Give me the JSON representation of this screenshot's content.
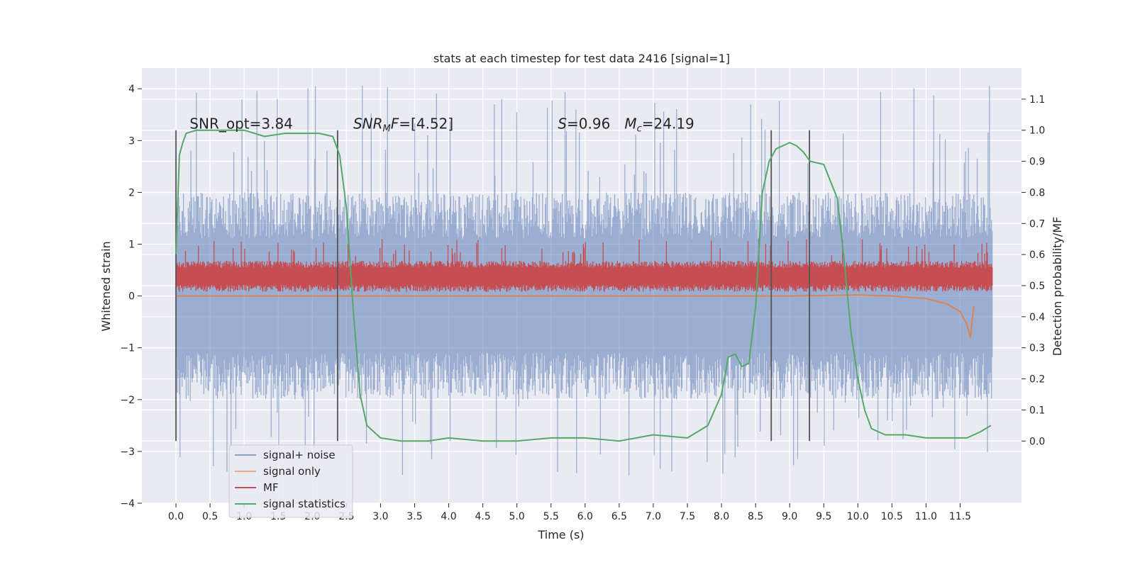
{
  "chart_data": {
    "type": "line",
    "title": "stats at each timestep for test data 2416 [signal=1]",
    "xlabel": "Time (s)",
    "ylabel": "Whitened strain",
    "ylabel_right": "Detection probability/MF",
    "xlim": [
      -0.5,
      12.4
    ],
    "ylim": [
      -4.0,
      4.4
    ],
    "ylim_right": [
      -0.2,
      1.2
    ],
    "xticks": [
      0.0,
      0.5,
      1.0,
      1.5,
      2.0,
      2.5,
      3.0,
      3.5,
      4.0,
      4.5,
      5.0,
      5.5,
      6.0,
      6.5,
      7.0,
      7.5,
      8.0,
      8.5,
      9.0,
      9.5,
      10.0,
      10.5,
      11.0,
      11.5
    ],
    "xtick_labels": [
      "0.0",
      "0.5",
      "1.0",
      "1.5",
      "2.0",
      "2.5",
      "3.0",
      "3.5",
      "4.0",
      "4.5",
      "5.0",
      "5.5",
      "6.0",
      "6.5",
      "7.0",
      "7.5",
      "8.0",
      "8.5",
      "9.0",
      "9.5",
      "10.0",
      "10.5",
      "11.0",
      "11.5"
    ],
    "yticks": [
      -4,
      -3,
      -2,
      -1,
      0,
      1,
      2,
      3,
      4
    ],
    "ytick_labels": [
      "−4",
      "−3",
      "−2",
      "−1",
      "0",
      "1",
      "2",
      "3",
      "4"
    ],
    "yticks_right": [
      0.0,
      0.1,
      0.2,
      0.3,
      0.4,
      0.5,
      0.6,
      0.7,
      0.8,
      0.9,
      1.0,
      1.1
    ],
    "ytick_labels_right": [
      "0.0",
      "0.1",
      "0.2",
      "0.3",
      "0.4",
      "0.5",
      "0.6",
      "0.7",
      "0.8",
      "0.9",
      "1.0",
      "1.1"
    ],
    "grid": true,
    "legend_position": "lower-left",
    "colors": {
      "background": "#eaeaf2",
      "grid": "#ffffff",
      "signal_noise": "#4c72b0",
      "signal_only": "#dd8452",
      "mf": "#c44e52",
      "signal_statistics": "#55a868",
      "markers": "#555555"
    },
    "annotations": [
      {
        "label": "SNR_opt=3.84",
        "x": 0.2,
        "y_right": 1.0
      },
      {
        "label": "SNR_MF=[4.52]",
        "x": 2.6,
        "y_right": 1.0
      },
      {
        "label": "S=0.96   M_c=24.19",
        "x": 5.6,
        "y_right": 1.0
      }
    ],
    "vertical_markers": [
      0.0,
      2.37,
      8.73,
      9.29
    ],
    "series": [
      {
        "name": "signal+ noise",
        "axis": "left",
        "kind": "noise_band",
        "x_range": [
          0.0,
          11.97
        ],
        "dense_range": [
          -2.0,
          2.0
        ],
        "peak_range": [
          -3.5,
          4.1
        ]
      },
      {
        "name": "signal only",
        "axis": "left",
        "x": [
          0.0,
          9.0,
          9.5,
          10.0,
          10.5,
          11.0,
          11.3,
          11.5,
          11.6,
          11.65,
          11.7
        ],
        "y": [
          0.0,
          0.0,
          0.01,
          0.02,
          0.0,
          -0.05,
          -0.15,
          -0.3,
          -0.55,
          -0.8,
          -0.2
        ]
      },
      {
        "name": "MF",
        "axis": "right",
        "kind": "noise_band",
        "x_range": [
          0.0,
          11.97
        ],
        "dense_range": [
          0.48,
          0.58
        ],
        "peak_range": [
          0.48,
          0.65
        ]
      },
      {
        "name": "signal statistics",
        "axis": "right",
        "x": [
          0.0,
          0.05,
          0.1,
          0.15,
          0.3,
          0.6,
          1.0,
          1.3,
          1.6,
          1.9,
          2.1,
          2.3,
          2.4,
          2.5,
          2.6,
          2.7,
          2.8,
          3.0,
          3.3,
          3.7,
          4.0,
          4.5,
          5.0,
          5.5,
          6.0,
          6.5,
          7.0,
          7.5,
          7.8,
          8.0,
          8.1,
          8.2,
          8.3,
          8.4,
          8.5,
          8.6,
          8.7,
          8.8,
          8.9,
          9.0,
          9.1,
          9.2,
          9.3,
          9.5,
          9.7,
          9.8,
          9.9,
          10.0,
          10.1,
          10.2,
          10.4,
          10.7,
          11.0,
          11.3,
          11.6,
          11.8,
          11.95
        ],
        "y": [
          0.6,
          0.92,
          0.96,
          0.99,
          1.0,
          1.0,
          1.0,
          0.98,
          0.99,
          0.99,
          0.99,
          0.98,
          0.92,
          0.75,
          0.42,
          0.15,
          0.05,
          0.01,
          0.0,
          0.0,
          0.01,
          0.0,
          0.0,
          0.01,
          0.01,
          0.0,
          0.02,
          0.01,
          0.05,
          0.15,
          0.27,
          0.28,
          0.24,
          0.25,
          0.43,
          0.8,
          0.9,
          0.94,
          0.95,
          0.96,
          0.95,
          0.93,
          0.9,
          0.89,
          0.78,
          0.58,
          0.35,
          0.2,
          0.1,
          0.04,
          0.02,
          0.02,
          0.01,
          0.01,
          0.01,
          0.03,
          0.05
        ]
      }
    ]
  }
}
